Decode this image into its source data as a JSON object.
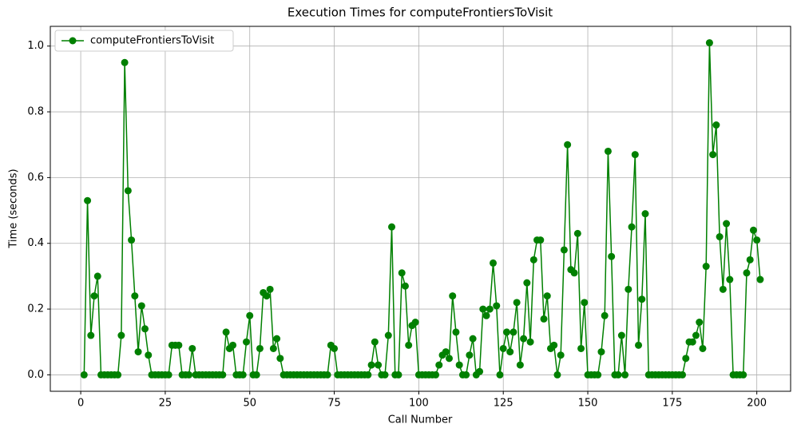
{
  "chart_data": {
    "type": "line",
    "title": "Execution Times for computeFrontiersToVisit",
    "x_label": "Call Number",
    "y_label": "Time (seconds)",
    "x": [
      1,
      2,
      3,
      4,
      5,
      6,
      7,
      8,
      9,
      10,
      11,
      12,
      13,
      14,
      15,
      16,
      17,
      18,
      19,
      20,
      21,
      22,
      23,
      24,
      25,
      26,
      27,
      28,
      29,
      30,
      31,
      32,
      33,
      34,
      35,
      36,
      37,
      38,
      39,
      40,
      41,
      42,
      43,
      44,
      45,
      46,
      47,
      48,
      49,
      50,
      51,
      52,
      53,
      54,
      55,
      56,
      57,
      58,
      59,
      60,
      61,
      62,
      63,
      64,
      65,
      66,
      67,
      68,
      69,
      70,
      71,
      72,
      73,
      74,
      75,
      76,
      77,
      78,
      79,
      80,
      81,
      82,
      83,
      84,
      85,
      86,
      87,
      88,
      89,
      90,
      91,
      92,
      93,
      94,
      95,
      96,
      97,
      98,
      99,
      100,
      101,
      102,
      103,
      104,
      105,
      106,
      107,
      108,
      109,
      110,
      111,
      112,
      113,
      114,
      115,
      116,
      117,
      118,
      119,
      120,
      121,
      122,
      123,
      124,
      125,
      126,
      127,
      128,
      129,
      130,
      131,
      132,
      133,
      134,
      135,
      136,
      137,
      138,
      139,
      140,
      141,
      142,
      143,
      144,
      145,
      146,
      147,
      148,
      149,
      150,
      151,
      152,
      153,
      154,
      155,
      156,
      157,
      158,
      159,
      160,
      161,
      162,
      163,
      164,
      165,
      166,
      167,
      168,
      169,
      170,
      171,
      172,
      173,
      174,
      175,
      176,
      177,
      178,
      179,
      180,
      181,
      182,
      183,
      184,
      185,
      186,
      187,
      188,
      189,
      190,
      191,
      192,
      193,
      194,
      195,
      196,
      197,
      198,
      199,
      200,
      201
    ],
    "series": [
      {
        "name": "computeFrontiersToVisit",
        "color": "#008000",
        "values": [
          0,
          0.53,
          0.12,
          0.24,
          0.3,
          0,
          0,
          0,
          0,
          0,
          0,
          0.12,
          0.95,
          0.56,
          0.41,
          0.24,
          0.07,
          0.21,
          0.14,
          0.06,
          0,
          0,
          0,
          0,
          0,
          0,
          0.09,
          0.09,
          0.09,
          0,
          0,
          0,
          0.08,
          0,
          0,
          0,
          0,
          0,
          0,
          0,
          0,
          0,
          0.13,
          0.08,
          0.09,
          0,
          0,
          0,
          0.1,
          0.18,
          0,
          0,
          0.08,
          0.25,
          0.24,
          0.26,
          0.08,
          0.11,
          0.05,
          0,
          0,
          0,
          0,
          0,
          0,
          0,
          0,
          0,
          0,
          0,
          0,
          0,
          0,
          0.09,
          0.08,
          0,
          0,
          0,
          0,
          0,
          0,
          0,
          0,
          0,
          0,
          0.03,
          0.1,
          0.03,
          0,
          0,
          0.12,
          0.45,
          0,
          0,
          0.31,
          0.27,
          0.09,
          0.15,
          0.16,
          0,
          0,
          0,
          0,
          0,
          0,
          0.03,
          0.06,
          0.07,
          0.05,
          0.24,
          0.13,
          0.03,
          0,
          0,
          0.06,
          0.11,
          0,
          0.01,
          0.2,
          0.18,
          0.2,
          0.34,
          0.21,
          0,
          0.08,
          0.13,
          0.07,
          0.13,
          0.22,
          0.03,
          0.11,
          0.28,
          0.1,
          0.35,
          0.41,
          0.41,
          0.17,
          0.24,
          0.08,
          0.09,
          0,
          0.06,
          0.38,
          0.7,
          0.32,
          0.31,
          0.43,
          0.08,
          0.22,
          0,
          0,
          0,
          0,
          0.07,
          0.18,
          0.68,
          0.36,
          0,
          0,
          0.12,
          0,
          0.26,
          0.45,
          0.67,
          0.09,
          0.23,
          0.49,
          0,
          0,
          0,
          0,
          0,
          0,
          0,
          0,
          0,
          0,
          0,
          0.05,
          0.1,
          0.1,
          0.12,
          0.16,
          0.08,
          0.33,
          1.01,
          0.67,
          0.76,
          0.42,
          0.26,
          0.46,
          0.29,
          0,
          0,
          0,
          0,
          0.31,
          0.35,
          0.44,
          0.41,
          0.29
        ]
      }
    ],
    "xlim": [
      -9,
      210
    ],
    "xticks": [
      0,
      25,
      50,
      75,
      100,
      125,
      150,
      175,
      200
    ],
    "ylim": [
      -0.05,
      1.06
    ],
    "yticks": [
      {
        "value": 0,
        "label": "0.0"
      },
      0.2,
      0.4,
      0.6,
      0.8,
      {
        "value": 1,
        "label": "1.0"
      }
    ],
    "grid": true,
    "legend": "upper left"
  }
}
